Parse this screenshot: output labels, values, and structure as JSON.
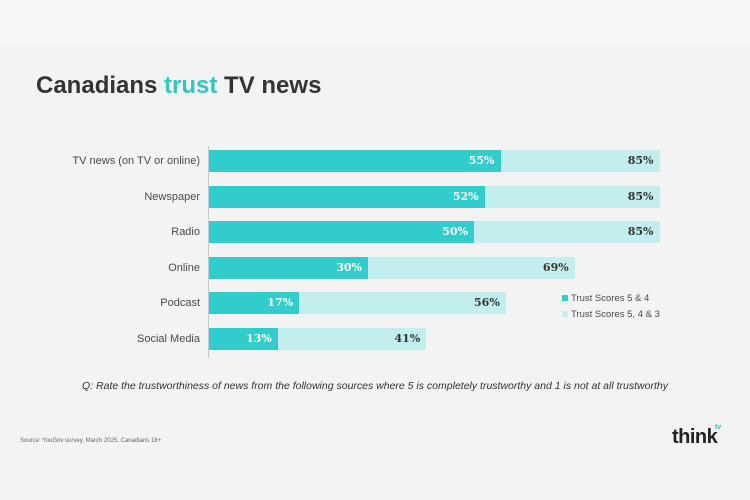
{
  "title": {
    "before": "Canadians ",
    "accent": "trust",
    "after": " TV news"
  },
  "chart_data": {
    "type": "bar",
    "orientation": "horizontal",
    "categories": [
      "TV news (on TV or online)",
      "Newspaper",
      "Radio",
      "Online",
      "Podcast",
      "Social Media"
    ],
    "series": [
      {
        "name": "Trust Scores 5 & 4",
        "values": [
          55,
          52,
          50,
          30,
          17,
          13
        ],
        "color": "#33cccc",
        "label_color": "#ffffff"
      },
      {
        "name": "Trust Scores 5, 4 & 3",
        "values": [
          85,
          85,
          85,
          69,
          56,
          41
        ],
        "color": "#c2eeee",
        "label_color": "#333333"
      }
    ],
    "value_suffix": "%",
    "xlim": [
      0,
      100
    ],
    "grid": false,
    "legend_position": "right"
  },
  "legend": {
    "items": [
      {
        "label": "Trust Scores 5 & 4",
        "color": "#33cccc"
      },
      {
        "label": "Trust Scores 5, 4 & 3",
        "color": "#c2eeee"
      }
    ]
  },
  "question": "Q: Rate the trustworthiness of news from the following sources where 5 is completely trustworthy and 1 is not at all trustworthy",
  "source": "Source: YouGov survey, March 2025, Canadians 18+",
  "logo": {
    "text": "think",
    "sup": "tv"
  },
  "colors": {
    "accent": "#33c4c4",
    "text": "#333333"
  }
}
